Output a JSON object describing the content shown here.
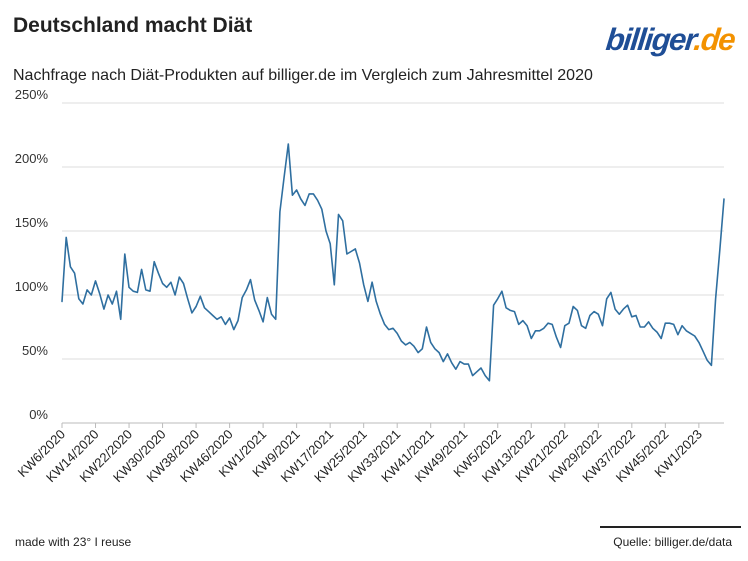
{
  "title": "Deutschland macht Diät",
  "subtitle": "Nachfrage nach Diät-Produkten auf billiger.de im Vergleich zum Jahresmittel 2020",
  "logo": {
    "name": "billiger",
    "tld": ".de"
  },
  "footer": {
    "credit": "made with 23° I reuse",
    "source": "Quelle: billiger.de/data"
  },
  "colors": {
    "line": "#2f6fa0",
    "grid": "#dddddd",
    "axis": "#bbbbbb",
    "logo_blue": "#1f4e96",
    "logo_orange": "#f39200"
  },
  "chart_data": {
    "type": "line",
    "title": "Deutschland macht Diät",
    "xlabel": "",
    "ylabel": "",
    "ylim": [
      0,
      250
    ],
    "yticks": [
      0,
      50,
      100,
      150,
      200,
      250
    ],
    "ytick_labels": [
      "0%",
      "50%",
      "100%",
      "150%",
      "200%",
      "250%"
    ],
    "x_tick_labels": [
      "KW6/2020",
      "KW14/2020",
      "KW22/2020",
      "KW30/2020",
      "KW38/2020",
      "KW46/2020",
      "KW1/2021",
      "KW9/2021",
      "KW17/2021",
      "KW25/2021",
      "KW33/2021",
      "KW41/2021",
      "KW49/2021",
      "KW5/2022",
      "KW13/2022",
      "KW21/2022",
      "KW29/2022",
      "KW37/2022",
      "KW45/2022",
      "KW1/2023"
    ],
    "x_tick_positions": [
      0,
      8,
      16,
      24,
      32,
      40,
      48,
      56,
      64,
      72,
      80,
      88,
      96,
      104,
      112,
      120,
      128,
      136,
      144,
      152
    ],
    "series": [
      {
        "name": "Nachfrage",
        "values": [
          95,
          145,
          122,
          117,
          97,
          93,
          104,
          100,
          111,
          101,
          89,
          100,
          93,
          103,
          81,
          132,
          106,
          103,
          102,
          120,
          104,
          103,
          126,
          117,
          109,
          106,
          110,
          100,
          114,
          109,
          97,
          86,
          91,
          99,
          90,
          87,
          84,
          81,
          83,
          77,
          82,
          73,
          80,
          98,
          104,
          112,
          96,
          88,
          79,
          98,
          85,
          81,
          165,
          192,
          218,
          178,
          182,
          175,
          170,
          179,
          179,
          174,
          167,
          150,
          140,
          108,
          163,
          158,
          132,
          134,
          136,
          125,
          108,
          95,
          110,
          95,
          85,
          77,
          73,
          74,
          70,
          64,
          61,
          63,
          60,
          55,
          58,
          75,
          63,
          58,
          55,
          48,
          54,
          47,
          42,
          48,
          46,
          46,
          37,
          40,
          43,
          37,
          33,
          92,
          97,
          103,
          90,
          88,
          87,
          77,
          80,
          76,
          66,
          72,
          72,
          74,
          78,
          77,
          67,
          59,
          76,
          78,
          91,
          88,
          76,
          74,
          84,
          87,
          85,
          76,
          97,
          102,
          89,
          85,
          89,
          92,
          83,
          84,
          75,
          75,
          79,
          74,
          71,
          66,
          78,
          78,
          77,
          69,
          76,
          72,
          70,
          68,
          63,
          56,
          49,
          45,
          97,
          135,
          175
        ]
      }
    ]
  }
}
